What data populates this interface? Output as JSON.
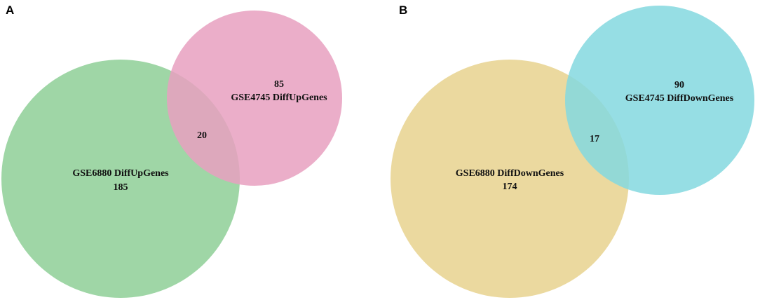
{
  "panels": [
    {
      "letter": "A",
      "left_set": {
        "label": "GSE6880 DiffUpGenes",
        "count": "185",
        "color": "#8ecf96"
      },
      "right_set": {
        "label": "GSE4745 DiffUpGenes",
        "count": "85",
        "color": "#e8a0bf"
      },
      "intersection": "20"
    },
    {
      "letter": "B",
      "left_set": {
        "label": "GSE6880 DiffDownGenes",
        "count": "174",
        "color": "#e8d28e"
      },
      "right_set": {
        "label": "GSE4745 DiffDownGenes",
        "count": "90",
        "color": "#84d8df"
      },
      "intersection": "17"
    }
  ],
  "circle_opacity": 0.85
}
